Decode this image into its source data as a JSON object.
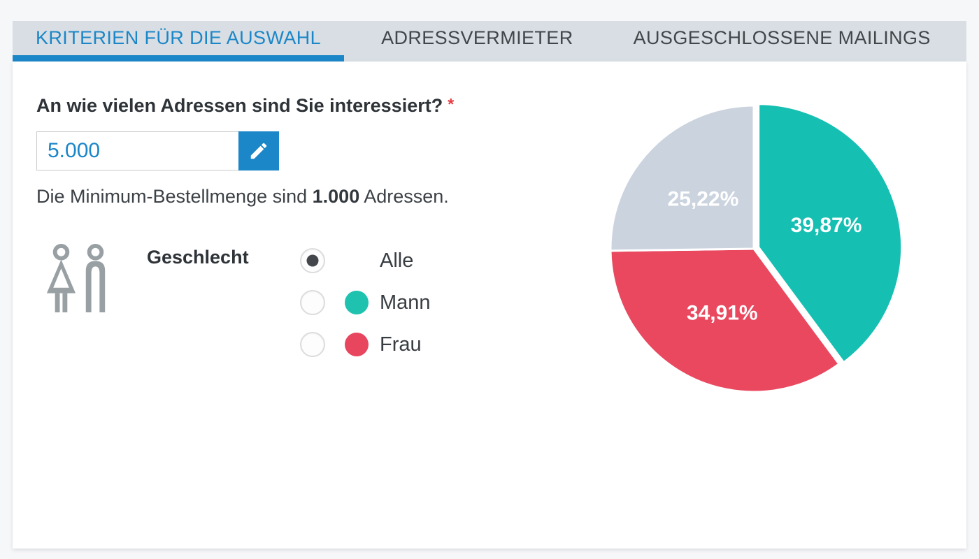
{
  "tabs": [
    {
      "label": "KRITERIEN FÜR DIE AUSWAHL",
      "active": true
    },
    {
      "label": "ADRESSVERMIETER",
      "active": false
    },
    {
      "label": "AUSGESCHLOSSENE MAILINGS",
      "active": false
    }
  ],
  "form": {
    "question": "An wie vielen Adressen sind Sie interessiert?",
    "required_marker": "*",
    "amount_value": "5.000",
    "note_prefix": "Die Minimum-Bestellmenge sind ",
    "note_bold": "1.000",
    "note_suffix": " Adressen.",
    "gender": {
      "label": "Geschlecht",
      "options": [
        {
          "label": "Alle",
          "selected": true,
          "dot_color": null
        },
        {
          "label": "Mann",
          "selected": false,
          "dot_color": "#1fc2af"
        },
        {
          "label": "Frau",
          "selected": false,
          "dot_color": "#e8465f"
        }
      ]
    }
  },
  "chart_data": {
    "type": "pie",
    "segments": [
      {
        "display": "39,87%",
        "value": 39.87,
        "color": "#15bfb2",
        "exploded": true
      },
      {
        "display": "34,91%",
        "value": 34.91,
        "color": "#e9485f",
        "exploded": false
      },
      {
        "display": "25,22%",
        "value": 25.22,
        "color": "#cbd3df",
        "exploded": false
      }
    ],
    "start_angle_deg": 0,
    "direction": "clockwise",
    "label_color": "#ffffff",
    "separator_color": "#ffffff",
    "legend": "none"
  },
  "colors": {
    "accent_blue": "#1b86c8",
    "tabbar_bg": "#d8dee3",
    "icon_gray": "#98a0a4",
    "required_red": "#e5393f"
  }
}
